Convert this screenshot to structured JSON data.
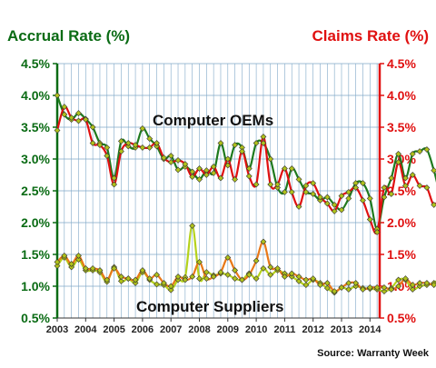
{
  "chart_data": {
    "type": "line",
    "title_left": "Accrual Rate (%)",
    "title_right": "Claims Rate (%)",
    "source": "Source: Warranty Week",
    "annotations": {
      "oem": "Computer OEMs",
      "suppliers": "Computer Suppliers"
    },
    "ylim": [
      0.5,
      4.5
    ],
    "y_ticks_left": [
      "0.5%",
      "1.0%",
      "1.5%",
      "2.0%",
      "2.5%",
      "3.0%",
      "3.5%",
      "4.0%",
      "4.5%"
    ],
    "y_ticks_right": [
      "0.5%",
      "1.0%",
      "1.5%",
      "2.0%",
      "2.5%",
      "3.0%",
      "3.5%",
      "4.0%",
      "4.5%"
    ],
    "x_ticks": [
      "2003",
      "2004",
      "2005",
      "2006",
      "2007",
      "2008",
      "2009",
      "2010",
      "2011",
      "2012",
      "2013",
      "2014"
    ],
    "x_start_year": 2003,
    "grid": true,
    "series": [
      {
        "name": "Computer OEMs - Accrual Rate",
        "values": [
          4.0,
          3.7,
          3.62,
          3.72,
          3.63,
          3.5,
          3.25,
          3.18,
          2.7,
          3.28,
          3.2,
          3.18,
          3.48,
          3.32,
          3.2,
          3.0,
          3.05,
          2.83,
          2.88,
          2.8,
          2.68,
          2.82,
          2.78,
          3.25,
          2.9,
          3.22,
          3.18,
          2.85,
          3.25,
          3.25,
          3.0,
          2.55,
          2.48,
          2.85,
          2.68,
          2.48,
          2.45,
          2.35,
          2.4,
          2.28,
          2.2,
          2.38,
          2.62,
          2.62,
          2.38,
          1.9,
          2.4,
          2.7,
          3.08,
          2.7,
          3.08,
          3.12,
          3.15,
          2.82,
          2.45,
          2.72
        ]
      },
      {
        "name": "Computer OEMs - Claims Rate",
        "values": [
          3.45,
          3.82,
          3.65,
          3.6,
          3.62,
          3.25,
          3.22,
          3.05,
          2.6,
          3.12,
          3.25,
          3.22,
          3.18,
          3.18,
          3.25,
          3.02,
          2.95,
          2.98,
          2.92,
          2.72,
          2.85,
          2.75,
          2.88,
          2.7,
          3.0,
          2.68,
          3.12,
          2.73,
          2.6,
          3.35,
          2.6,
          2.6,
          2.85,
          2.48,
          2.25,
          2.58,
          2.62,
          2.4,
          2.3,
          2.18,
          2.42,
          2.48,
          2.55,
          2.35,
          2.05,
          1.85,
          2.55,
          2.45,
          2.95,
          2.58,
          2.75,
          2.58,
          2.55,
          2.28,
          2.45,
          2.68
        ]
      },
      {
        "name": "Computer Suppliers - Accrual Rate",
        "values": [
          1.32,
          1.45,
          1.3,
          1.42,
          1.25,
          1.25,
          1.22,
          1.07,
          1.3,
          1.08,
          1.12,
          1.05,
          1.22,
          1.1,
          1.03,
          1.02,
          0.94,
          1.1,
          1.14,
          1.95,
          1.12,
          1.22,
          1.17,
          1.2,
          1.18,
          1.12,
          1.1,
          1.2,
          1.12,
          1.28,
          1.18,
          1.25,
          1.2,
          1.15,
          1.08,
          1.02,
          1.1,
          1.05,
          0.97,
          0.9,
          0.98,
          0.95,
          1.0,
          0.97,
          0.96,
          0.95,
          0.92,
          0.97,
          1.1,
          1.1,
          0.95,
          1.0,
          1.02,
          1.05,
          1.13,
          1.08
        ]
      },
      {
        "name": "Computer Suppliers - Claims Rate",
        "values": [
          1.38,
          1.48,
          1.35,
          1.48,
          1.28,
          1.28,
          1.25,
          1.1,
          1.28,
          1.15,
          1.12,
          1.1,
          1.25,
          1.12,
          1.18,
          1.05,
          1.0,
          1.15,
          1.1,
          1.15,
          1.38,
          1.12,
          1.15,
          1.22,
          1.45,
          1.25,
          1.1,
          1.18,
          1.4,
          1.7,
          1.3,
          1.28,
          1.15,
          1.2,
          1.15,
          1.1,
          1.12,
          1.02,
          1.05,
          0.92,
          0.98,
          1.05,
          1.05,
          0.95,
          0.98,
          0.98,
          0.98,
          0.95,
          1.0,
          1.12,
          1.02,
          1.05,
          1.05,
          1.02,
          1.08,
          1.15
        ]
      }
    ],
    "colors": {
      "accrual": "#1e7a1e",
      "claims": "#e01010",
      "supplier_accrual": "#b5d21c",
      "supplier_claims": "#e87818",
      "marker_fill": "#b0c21a",
      "marker_stroke": "#333333",
      "grid": "#7fa8c8",
      "axis_left": "#0a6b14",
      "axis_right": "#e01010",
      "tick_text": "#222222"
    }
  }
}
